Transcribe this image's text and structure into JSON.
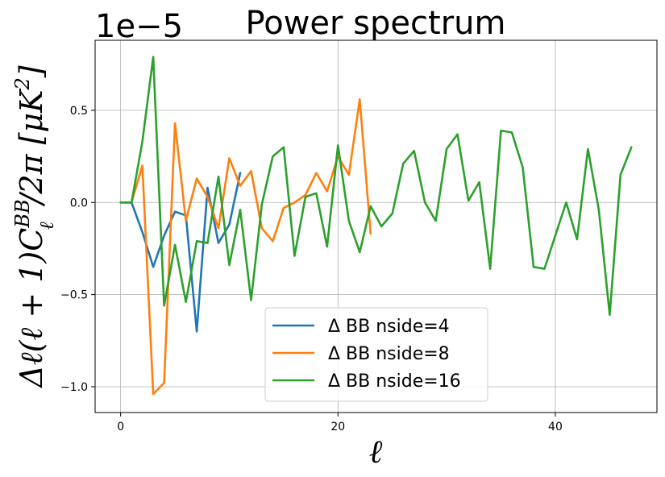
{
  "chart_data": {
    "type": "line",
    "title": "Power spectrum",
    "xlabel": "ℓ",
    "ylabel": "Δℓ(ℓ + 1)C",
    "ylabel_sup": "BB",
    "ylabel_sub": "ℓ",
    "ylabel_tail": "/2π [μK",
    "ylabel_pow": "2",
    "ylabel_close": "]",
    "offset_text": "1e−5",
    "xlim": [
      -2.35,
      49.35
    ],
    "ylim": [
      -1.14,
      0.88
    ],
    "xticks": [
      0,
      20,
      40
    ],
    "xtick_labels": [
      "0",
      "20",
      "40"
    ],
    "yticks": [
      -1.0,
      -0.5,
      0.0,
      0.5
    ],
    "ytick_labels": [
      "−1.0",
      "−0.5",
      "0.0",
      "0.5"
    ],
    "grid": true,
    "legend_position": "lower-center",
    "series": [
      {
        "name": "Δ BB nside=4",
        "color": "#1f77b4",
        "x": [
          0,
          1,
          2,
          3,
          4,
          5,
          6,
          7,
          8,
          9,
          10,
          11
        ],
        "y": [
          0.0,
          0.0,
          -0.16,
          -0.35,
          -0.18,
          -0.05,
          -0.07,
          -0.7,
          0.08,
          -0.22,
          -0.12,
          0.16
        ]
      },
      {
        "name": "Δ BB nside=8",
        "color": "#ff7f0e",
        "x": [
          0,
          1,
          2,
          3,
          4,
          5,
          6,
          7,
          8,
          9,
          10,
          11,
          12,
          13,
          14,
          15,
          16,
          17,
          18,
          19,
          20,
          21,
          22,
          23
        ],
        "y": [
          0.0,
          0.0,
          0.2,
          -1.04,
          -0.98,
          0.43,
          -0.1,
          0.13,
          0.03,
          -0.14,
          0.24,
          0.09,
          0.17,
          -0.14,
          -0.21,
          -0.03,
          0.0,
          0.04,
          0.16,
          0.06,
          0.25,
          0.15,
          0.56,
          -0.17
        ]
      },
      {
        "name": "Δ BB nside=16",
        "color": "#2ca02c",
        "x": [
          0,
          1,
          2,
          3,
          4,
          5,
          6,
          7,
          8,
          9,
          10,
          11,
          12,
          13,
          14,
          15,
          16,
          17,
          18,
          19,
          20,
          21,
          22,
          23,
          24,
          25,
          26,
          27,
          28,
          29,
          30,
          31,
          32,
          33,
          34,
          35,
          36,
          37,
          38,
          39,
          40,
          41,
          42,
          43,
          44,
          45,
          46,
          47
        ],
        "y": [
          0.0,
          0.0,
          0.33,
          0.79,
          -0.56,
          -0.23,
          -0.54,
          -0.21,
          -0.22,
          0.14,
          -0.34,
          -0.04,
          -0.53,
          -0.01,
          0.25,
          0.3,
          -0.29,
          0.03,
          0.05,
          -0.24,
          0.31,
          -0.1,
          -0.27,
          -0.02,
          -0.13,
          -0.06,
          0.21,
          0.28,
          0.0,
          -0.1,
          0.29,
          0.37,
          0.01,
          0.11,
          -0.36,
          0.39,
          0.38,
          0.19,
          -0.35,
          -0.36,
          -0.18,
          0.0,
          -0.2,
          0.29,
          -0.04,
          -0.61,
          0.15,
          0.3
        ]
      }
    ]
  }
}
